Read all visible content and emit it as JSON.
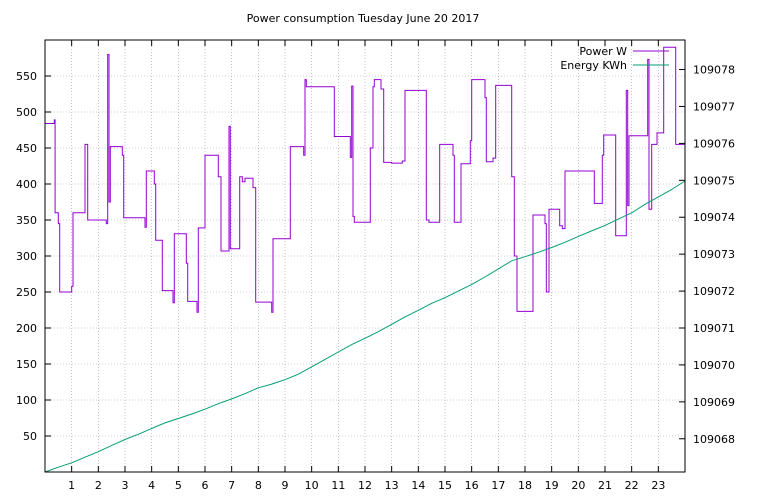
{
  "chart_data": {
    "type": "line",
    "title": "Power consumption Tuesday June 20 2017",
    "xlabel": "",
    "ylabel": "",
    "y2label": "",
    "xlim": [
      0,
      24
    ],
    "ylim": [
      0,
      600
    ],
    "y2lim": [
      109067.1,
      109078.8
    ],
    "x_ticks": [
      1,
      2,
      3,
      4,
      5,
      6,
      7,
      8,
      9,
      10,
      11,
      12,
      13,
      14,
      15,
      16,
      17,
      18,
      19,
      20,
      21,
      22,
      23
    ],
    "y_ticks": [
      50,
      100,
      150,
      200,
      250,
      300,
      350,
      400,
      450,
      500,
      550
    ],
    "y2_ticks": [
      109068,
      109069,
      109070,
      109071,
      109072,
      109073,
      109074,
      109075,
      109076,
      109077,
      109078
    ],
    "grid": true,
    "legend_position": "top-right",
    "series": [
      {
        "name": "Power W",
        "axis": "y",
        "color": "#9400d3",
        "step": true,
        "points": [
          [
            0,
            484
          ],
          [
            0.35,
            489
          ],
          [
            0.38,
            360
          ],
          [
            0.5,
            345
          ],
          [
            0.55,
            250
          ],
          [
            1.0,
            258
          ],
          [
            1.05,
            360
          ],
          [
            1.5,
            455
          ],
          [
            1.6,
            350
          ],
          [
            2.3,
            345
          ],
          [
            2.35,
            580
          ],
          [
            2.4,
            375
          ],
          [
            2.45,
            452
          ],
          [
            2.9,
            440
          ],
          [
            2.95,
            353
          ],
          [
            3.75,
            340
          ],
          [
            3.8,
            418
          ],
          [
            4.1,
            400
          ],
          [
            4.15,
            322
          ],
          [
            4.4,
            252
          ],
          [
            4.8,
            235
          ],
          [
            4.85,
            331
          ],
          [
            5.3,
            290
          ],
          [
            5.35,
            237
          ],
          [
            5.7,
            222
          ],
          [
            5.75,
            339
          ],
          [
            6.0,
            440
          ],
          [
            6.5,
            410
          ],
          [
            6.6,
            307
          ],
          [
            6.9,
            480
          ],
          [
            6.95,
            310
          ],
          [
            7.3,
            410
          ],
          [
            7.4,
            403
          ],
          [
            7.5,
            408
          ],
          [
            7.8,
            395
          ],
          [
            7.9,
            236
          ],
          [
            8.5,
            222
          ],
          [
            8.55,
            324
          ],
          [
            9.2,
            452
          ],
          [
            9.7,
            440
          ],
          [
            9.75,
            545
          ],
          [
            9.8,
            535
          ],
          [
            10.85,
            466
          ],
          [
            11.45,
            437
          ],
          [
            11.5,
            536
          ],
          [
            11.55,
            355
          ],
          [
            11.6,
            347
          ],
          [
            12.2,
            450
          ],
          [
            12.3,
            535
          ],
          [
            12.35,
            545
          ],
          [
            12.6,
            532
          ],
          [
            12.7,
            430
          ],
          [
            13.0,
            429
          ],
          [
            13.4,
            432
          ],
          [
            13.5,
            530
          ],
          [
            14.3,
            350
          ],
          [
            14.4,
            347
          ],
          [
            14.8,
            455
          ],
          [
            15.3,
            440
          ],
          [
            15.35,
            347
          ],
          [
            15.6,
            428
          ],
          [
            15.95,
            460
          ],
          [
            16.0,
            545
          ],
          [
            16.5,
            520
          ],
          [
            16.55,
            431
          ],
          [
            16.8,
            436
          ],
          [
            16.9,
            537
          ],
          [
            17.5,
            410
          ],
          [
            17.6,
            300
          ],
          [
            17.7,
            223
          ],
          [
            18.3,
            357
          ],
          [
            18.75,
            345
          ],
          [
            18.8,
            250
          ],
          [
            18.9,
            365
          ],
          [
            19.3,
            342
          ],
          [
            19.4,
            338
          ],
          [
            19.5,
            418
          ],
          [
            20.6,
            373
          ],
          [
            20.9,
            440
          ],
          [
            20.95,
            468
          ],
          [
            21.4,
            328
          ],
          [
            21.8,
            530
          ],
          [
            21.85,
            370
          ],
          [
            21.9,
            467
          ],
          [
            22.6,
            573
          ],
          [
            22.65,
            365
          ],
          [
            22.75,
            455
          ],
          [
            22.95,
            471
          ],
          [
            23.2,
            590
          ],
          [
            23.65,
            455
          ],
          [
            24,
            455
          ]
        ]
      },
      {
        "name": "Energy KWh",
        "axis": "y2",
        "color": "#009e73",
        "step": false,
        "points": [
          [
            0,
            109067.1
          ],
          [
            0.5,
            109067.23
          ],
          [
            1,
            109067.35
          ],
          [
            1.5,
            109067.5
          ],
          [
            2,
            109067.65
          ],
          [
            2.5,
            109067.82
          ],
          [
            3,
            109067.98
          ],
          [
            3.5,
            109068.12
          ],
          [
            4,
            109068.28
          ],
          [
            4.5,
            109068.43
          ],
          [
            5,
            109068.55
          ],
          [
            5.5,
            109068.67
          ],
          [
            6,
            109068.8
          ],
          [
            6.5,
            109068.95
          ],
          [
            7,
            109069.08
          ],
          [
            7.5,
            109069.22
          ],
          [
            8,
            109069.38
          ],
          [
            8.5,
            109069.48
          ],
          [
            9,
            109069.6
          ],
          [
            9.5,
            109069.75
          ],
          [
            10,
            109069.95
          ],
          [
            10.5,
            109070.15
          ],
          [
            11,
            109070.35
          ],
          [
            11.5,
            109070.55
          ],
          [
            12,
            109070.72
          ],
          [
            12.5,
            109070.9
          ],
          [
            13,
            109071.1
          ],
          [
            13.5,
            109071.3
          ],
          [
            14,
            109071.48
          ],
          [
            14.5,
            109071.67
          ],
          [
            15,
            109071.82
          ],
          [
            15.5,
            109072.0
          ],
          [
            16,
            109072.18
          ],
          [
            16.5,
            109072.38
          ],
          [
            17,
            109072.6
          ],
          [
            17.5,
            109072.82
          ],
          [
            18,
            109072.93
          ],
          [
            18.5,
            109073.05
          ],
          [
            19,
            109073.18
          ],
          [
            19.5,
            109073.32
          ],
          [
            20,
            109073.48
          ],
          [
            20.5,
            109073.63
          ],
          [
            21,
            109073.78
          ],
          [
            21.5,
            109073.95
          ],
          [
            22,
            109074.12
          ],
          [
            22.5,
            109074.35
          ],
          [
            23,
            109074.55
          ],
          [
            23.5,
            109074.75
          ],
          [
            24,
            109074.98
          ]
        ]
      }
    ]
  }
}
